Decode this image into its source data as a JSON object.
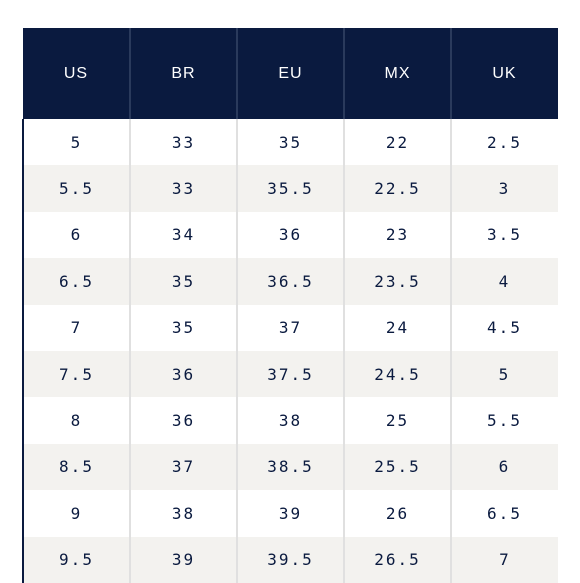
{
  "headers": [
    "US",
    "BR",
    "EU",
    "MX",
    "UK"
  ],
  "rows": [
    [
      "5",
      "33",
      "35",
      "22",
      "2.5"
    ],
    [
      "5.5",
      "33",
      "35.5",
      "22.5",
      "3"
    ],
    [
      "6",
      "34",
      "36",
      "23",
      "3.5"
    ],
    [
      "6.5",
      "35",
      "36.5",
      "23.5",
      "4"
    ],
    [
      "7",
      "35",
      "37",
      "24",
      "4.5"
    ],
    [
      "7.5",
      "36",
      "37.5",
      "24.5",
      "5"
    ],
    [
      "8",
      "36",
      "38",
      "25",
      "5.5"
    ],
    [
      "8.5",
      "37",
      "38.5",
      "25.5",
      "6"
    ],
    [
      "9",
      "38",
      "39",
      "26",
      "6.5"
    ],
    [
      "9.5",
      "39",
      "39.5",
      "26.5",
      "7"
    ]
  ],
  "colors": {
    "header_bg": "#0a1a3f",
    "header_text": "#ffffff",
    "cell_text": "#0a1a3f",
    "stripe": "#f3f2ef"
  }
}
